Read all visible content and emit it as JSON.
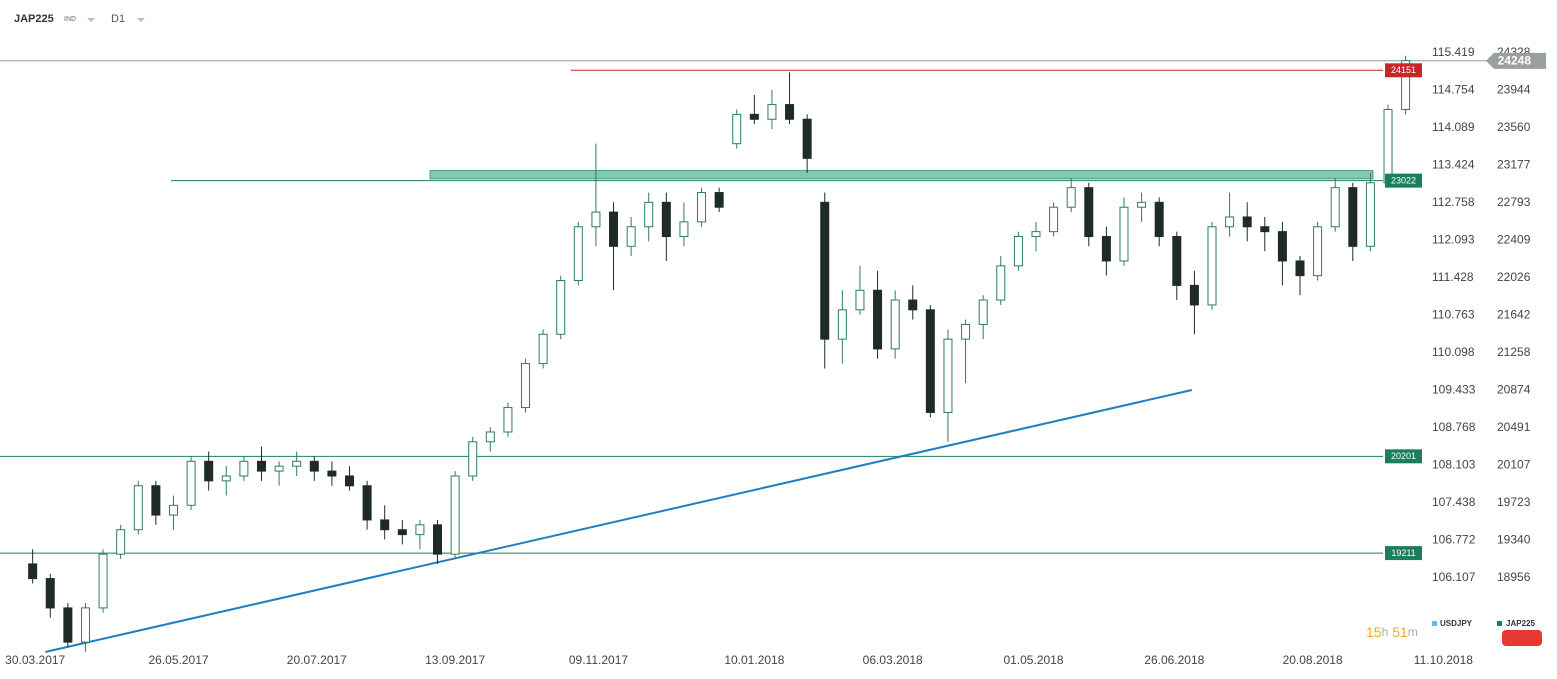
{
  "header": {
    "symbol": "JAP225",
    "market": "IND",
    "interval": "D1"
  },
  "countdown": {
    "hours": 15,
    "hours_unit": "h",
    "minutes": 51,
    "minutes_unit": "m"
  },
  "chart_data": {
    "type": "candlestick",
    "x": [
      "2017-03-27",
      "2017-04-03",
      "2017-04-10",
      "2017-04-17",
      "2017-04-24",
      "2017-05-01",
      "2017-05-08",
      "2017-05-15",
      "2017-05-22",
      "2017-05-29",
      "2017-06-05",
      "2017-06-12",
      "2017-06-19",
      "2017-06-26",
      "2017-07-03",
      "2017-07-10",
      "2017-07-17",
      "2017-07-24",
      "2017-07-31",
      "2017-08-07",
      "2017-08-14",
      "2017-08-21",
      "2017-08-28",
      "2017-09-04",
      "2017-09-11",
      "2017-09-18",
      "2017-09-25",
      "2017-10-02",
      "2017-10-09",
      "2017-10-16",
      "2017-10-23",
      "2017-10-30",
      "2017-11-06",
      "2017-11-13",
      "2017-11-20",
      "2017-11-27",
      "2017-12-04",
      "2017-12-11",
      "2017-12-18",
      "2017-12-25",
      "2018-01-01",
      "2018-01-08",
      "2018-01-15",
      "2018-01-22",
      "2018-01-29",
      "2018-02-05",
      "2018-02-12",
      "2018-02-19",
      "2018-02-26",
      "2018-03-05",
      "2018-03-12",
      "2018-03-19",
      "2018-03-26",
      "2018-04-02",
      "2018-04-09",
      "2018-04-16",
      "2018-04-23",
      "2018-04-30",
      "2018-05-07",
      "2018-05-14",
      "2018-05-21",
      "2018-05-28",
      "2018-06-04",
      "2018-06-11",
      "2018-06-18",
      "2018-06-25",
      "2018-07-02",
      "2018-07-09",
      "2018-07-16",
      "2018-07-23",
      "2018-07-30",
      "2018-08-06",
      "2018-08-13",
      "2018-08-20",
      "2018-08-27",
      "2018-09-03",
      "2018-09-10",
      "2018-09-17",
      "2018-09-24"
    ],
    "series": [
      {
        "name": "JAP225",
        "color": "#1b7f5a",
        "up_color": "#2e7d5b",
        "down_color": "#1e2b28",
        "open": [
          19100,
          18950,
          18650,
          18300,
          18650,
          19200,
          19450,
          19900,
          19600,
          19700,
          20150,
          19950,
          20000,
          20150,
          20050,
          20100,
          20150,
          20050,
          20000,
          19900,
          19550,
          19450,
          19400,
          19500,
          19200,
          20000,
          20350,
          20450,
          20700,
          21150,
          21450,
          22000,
          22550,
          22700,
          22350,
          22550,
          22800,
          22450,
          22600,
          22900,
          23400,
          23700,
          23650,
          23800,
          23650,
          22800,
          21400,
          21700,
          21900,
          21300,
          21800,
          21700,
          20650,
          21400,
          21550,
          21800,
          22150,
          22450,
          22500,
          22750,
          22950,
          22450,
          22200,
          22750,
          22800,
          22450,
          21950,
          21750,
          22550,
          22650,
          22550,
          22500,
          22200,
          22050,
          22550,
          22950,
          22350,
          23000,
          23750
        ],
        "high": [
          19250,
          19000,
          18700,
          18700,
          19250,
          19500,
          19950,
          19950,
          19800,
          20200,
          20250,
          20100,
          20200,
          20300,
          20150,
          20250,
          20200,
          20150,
          20100,
          19950,
          19700,
          19550,
          19550,
          19550,
          20050,
          20400,
          20500,
          20750,
          21200,
          21500,
          22050,
          22600,
          23400,
          22800,
          22650,
          22900,
          22900,
          22800,
          22950,
          22950,
          23750,
          23900,
          23950,
          24130,
          23700,
          22900,
          21900,
          22150,
          22100,
          21900,
          21950,
          21750,
          21500,
          21600,
          21850,
          22250,
          22500,
          22600,
          22800,
          23050,
          23000,
          22550,
          22850,
          22900,
          22850,
          22500,
          22100,
          22600,
          22900,
          22800,
          22650,
          22600,
          22250,
          22600,
          23050,
          23000,
          23100,
          23800,
          24300
        ],
        "low": [
          18900,
          18550,
          18250,
          18200,
          18600,
          19150,
          19400,
          19500,
          19450,
          19650,
          19850,
          19800,
          19950,
          19950,
          19900,
          20000,
          19950,
          19900,
          19850,
          19450,
          19350,
          19300,
          19250,
          19100,
          19150,
          19950,
          20250,
          20400,
          20650,
          21100,
          21400,
          21950,
          22350,
          21900,
          22250,
          22400,
          22200,
          22350,
          22550,
          22700,
          23350,
          23600,
          23550,
          23600,
          23100,
          21100,
          21150,
          21650,
          21200,
          21200,
          21600,
          20600,
          20350,
          20950,
          21400,
          21750,
          22100,
          22300,
          22450,
          22700,
          22350,
          22050,
          22150,
          22600,
          22350,
          21800,
          21450,
          21700,
          22450,
          22400,
          22300,
          21950,
          21850,
          22000,
          22500,
          22200,
          22300,
          22950,
          23700
        ],
        "close": [
          18950,
          18650,
          18300,
          18650,
          19200,
          19450,
          19900,
          19600,
          19700,
          20150,
          19950,
          20000,
          20150,
          20050,
          20100,
          20150,
          20050,
          20000,
          19900,
          19550,
          19450,
          19400,
          19500,
          19200,
          20000,
          20350,
          20450,
          20700,
          21150,
          21450,
          22000,
          22550,
          22700,
          22350,
          22550,
          22800,
          22450,
          22600,
          22900,
          22750,
          23700,
          23650,
          23800,
          23650,
          23250,
          21400,
          21700,
          21900,
          21300,
          21800,
          21700,
          20650,
          21400,
          21550,
          21800,
          22150,
          22450,
          22500,
          22750,
          22950,
          22450,
          22200,
          22750,
          22800,
          22450,
          21950,
          21750,
          22550,
          22650,
          22550,
          22500,
          22200,
          22050,
          22550,
          22950,
          22350,
          23000,
          23750,
          24250
        ]
      }
    ],
    "overlay": {
      "name": "USDJPY",
      "color": "#4fc3f7",
      "axis": "y2"
    },
    "xlim": [
      "2017-03-16",
      "2018-10-20"
    ],
    "xticks": [
      {
        "value": "2017-03-30",
        "label": "30.03.2017"
      },
      {
        "value": "2017-05-26",
        "label": "26.05.2017"
      },
      {
        "value": "2017-07-20",
        "label": "20.07.2017"
      },
      {
        "value": "2017-09-13",
        "label": "13.09.2017"
      },
      {
        "value": "2017-11-09",
        "label": "09.11.2017"
      },
      {
        "value": "2018-01-10",
        "label": "10.01.2018"
      },
      {
        "value": "2018-03-06",
        "label": "06.03.2018"
      },
      {
        "value": "2018-05-01",
        "label": "01.05.2018"
      },
      {
        "value": "2018-06-26",
        "label": "26.06.2018"
      },
      {
        "value": "2018-08-20",
        "label": "20.08.2018"
      },
      {
        "value": "2018-10-11",
        "label": "11.10.2018"
      }
    ],
    "ylim": [
      18117,
      24461
    ],
    "yticks": [
      24328,
      23944,
      23560,
      23177,
      22793,
      22409,
      22026,
      21642,
      21258,
      20874,
      20491,
      20107,
      19723,
      19340,
      18956
    ],
    "y2lim": [
      104.653,
      115.65
    ],
    "y2ticks": [
      115.419,
      114.754,
      114.089,
      113.424,
      112.758,
      112.093,
      111.428,
      110.763,
      110.098,
      109.433,
      108.768,
      108.103,
      107.438,
      106.772,
      106.107
    ],
    "last_price": 24248,
    "levels": [
      {
        "value": 24151,
        "color": "#c62828",
        "start": "2017-10-29"
      },
      {
        "value": 23022,
        "color": "#1b7f5a",
        "start": "2017-05-23"
      },
      {
        "value": 20201,
        "color": "#1b7f5a"
      },
      {
        "value": 19211,
        "color": "#1b7f5a"
      }
    ],
    "zone": {
      "from": "2017-09-03",
      "to": "2018-09-13",
      "low": 23040,
      "high": 23125,
      "color": "#6dbf9c"
    },
    "trendline": {
      "color": "#1e7fc4",
      "x": [
        "2017-04-03",
        "2018-07-03"
      ],
      "y": [
        18199,
        20880
      ]
    }
  }
}
